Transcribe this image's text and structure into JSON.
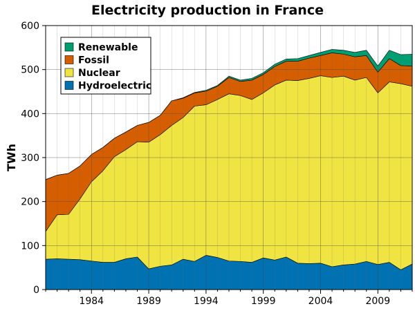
{
  "chart_data": {
    "type": "area",
    "stacked": true,
    "title": "Electricity production in France",
    "xlabel": "",
    "ylabel": "TWh",
    "ylim": [
      0,
      600
    ],
    "yticks": [
      0,
      100,
      200,
      300,
      400,
      500,
      600
    ],
    "xlim": [
      1980,
      2012
    ],
    "xticks": [
      1984,
      1989,
      1994,
      1999,
      2004,
      2009
    ],
    "grid": true,
    "legend_position": "top-left",
    "x": [
      1980,
      1981,
      1982,
      1983,
      1984,
      1985,
      1986,
      1987,
      1988,
      1989,
      1990,
      1991,
      1992,
      1993,
      1994,
      1995,
      1996,
      1997,
      1998,
      1999,
      2000,
      2001,
      2002,
      2003,
      2004,
      2005,
      2006,
      2007,
      2008,
      2009,
      2010,
      2011,
      2012
    ],
    "series": [
      {
        "name": "Hydroelectric",
        "color": "#0072b2",
        "values": [
          69,
          70,
          69,
          68,
          65,
          62,
          62,
          70,
          74,
          47,
          53,
          56,
          69,
          64,
          78,
          73,
          65,
          64,
          62,
          72,
          67,
          74,
          60,
          59,
          60,
          52,
          56,
          58,
          64,
          57,
          62,
          45,
          58
        ]
      },
      {
        "name": "Nuclear",
        "color": "#f0e442",
        "values": [
          63,
          100,
          102,
          138,
          180,
          208,
          240,
          248,
          262,
          288,
          299,
          317,
          322,
          353,
          342,
          359,
          380,
          377,
          370,
          375,
          398,
          402,
          415,
          421,
          426,
          430,
          429,
          418,
          418,
          390,
          410,
          423,
          404
        ]
      },
      {
        "name": "Fossil",
        "color": "#d55e00",
        "values": [
          118,
          90,
          93,
          75,
          62,
          53,
          42,
          40,
          37,
          45,
          44,
          56,
          44,
          30,
          31,
          30,
          37,
          32,
          44,
          42,
          42,
          43,
          44,
          46,
          46,
          56,
          50,
          53,
          50,
          47,
          53,
          41,
          46
        ]
      },
      {
        "name": "Renewable",
        "color": "#009e73",
        "values": [
          0,
          0,
          0,
          0,
          0,
          0,
          0,
          0,
          0,
          0,
          0,
          0,
          1,
          1,
          2,
          2,
          3,
          3,
          4,
          4,
          5,
          5,
          6,
          6,
          7,
          8,
          9,
          10,
          12,
          14,
          19,
          25,
          27
        ]
      }
    ],
    "legend_order": [
      "Renewable",
      "Fossil",
      "Nuclear",
      "Hydroelectric"
    ]
  }
}
